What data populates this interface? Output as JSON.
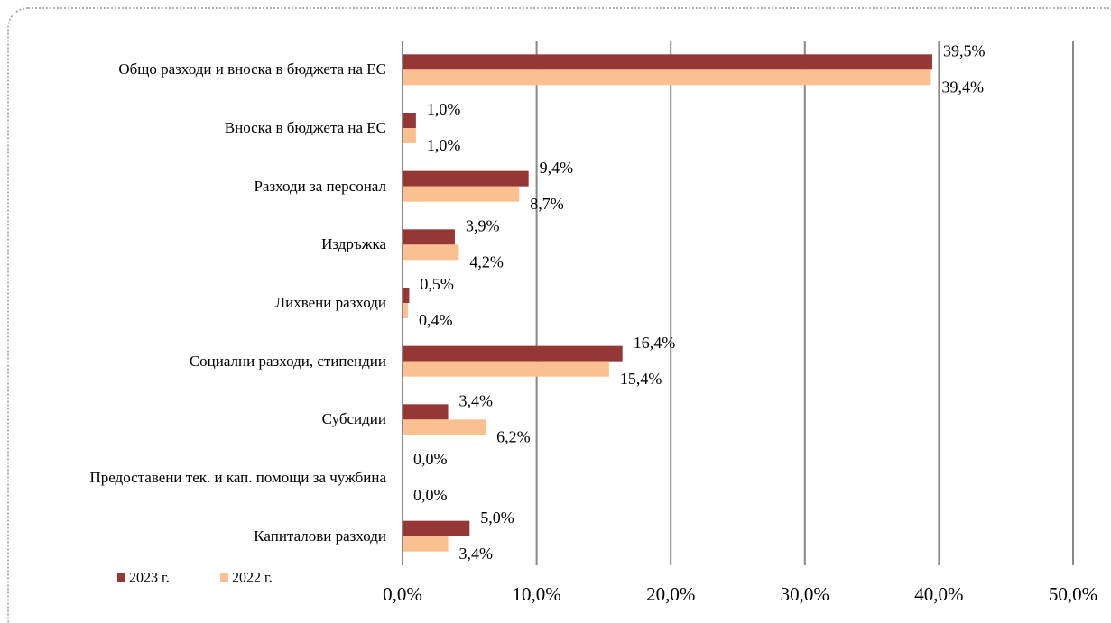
{
  "chart_data": {
    "type": "bar",
    "orientation": "horizontal",
    "categories": [
      "Общо разходи и вноска в бюджета на ЕС",
      "Вноска в бюджета на ЕС",
      "Разходи за персонал",
      "Издръжка",
      "Лихвени разходи",
      "Социални  разходи, стипендии",
      "Субсидии",
      "Предоставени тек. и кап. помощи за чужбина",
      "Капиталови  разходи"
    ],
    "series": [
      {
        "name": "2023 г.",
        "color": "#953735",
        "values": [
          39.5,
          1.0,
          9.4,
          3.9,
          0.5,
          16.4,
          3.4,
          0.0,
          5.0
        ],
        "value_labels": [
          "39,5%",
          "1,0%",
          "9,4%",
          "3,9%",
          "0,5%",
          "16,4%",
          "3,4%",
          "0,0%",
          "5,0%"
        ]
      },
      {
        "name": "2022 г.",
        "color": "#fac090",
        "values": [
          39.4,
          1.0,
          8.7,
          4.2,
          0.4,
          15.4,
          6.2,
          0.0,
          3.4
        ],
        "value_labels": [
          "39,4%",
          "1,0%",
          "8,7%",
          "4,2%",
          "0,4%",
          "15,4%",
          "6,2%",
          "0,0%",
          "3,4%"
        ]
      }
    ],
    "xlim": [
      0,
      50
    ],
    "xticks": [
      {
        "value": 0,
        "label": "0,0%"
      },
      {
        "value": 10,
        "label": "10,0%"
      },
      {
        "value": 20,
        "label": "20,0%"
      },
      {
        "value": 30,
        "label": "30,0%"
      },
      {
        "value": 40,
        "label": "40,0%"
      },
      {
        "value": 50,
        "label": "50,0%"
      }
    ],
    "grid": true,
    "legend": "bottom-left"
  }
}
